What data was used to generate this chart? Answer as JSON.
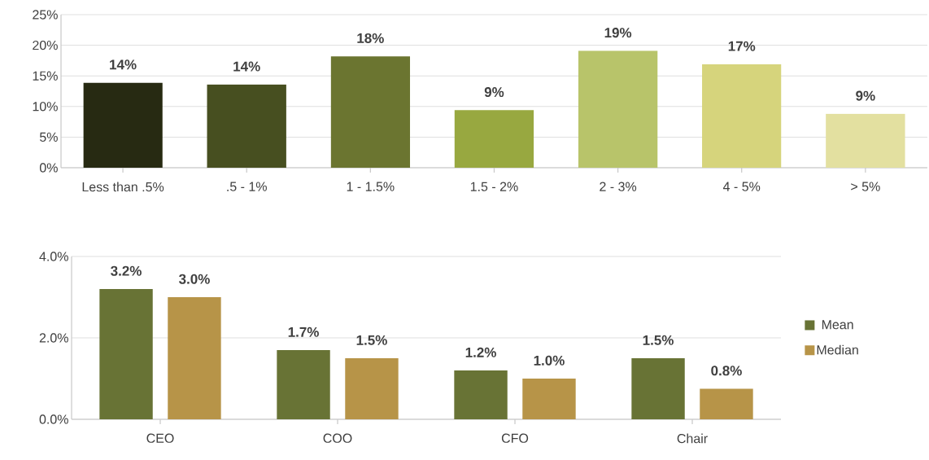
{
  "chart_data": [
    {
      "type": "bar",
      "categories": [
        "Less than .5%",
        ".5 - 1%",
        "1 - 1.5%",
        "1.5 - 2%",
        "2 - 3%",
        "4 - 5%",
        "> 5%"
      ],
      "values": [
        13.9,
        13.6,
        18.2,
        9.4,
        19.1,
        16.9,
        8.8
      ],
      "value_labels": [
        "14%",
        "14%",
        "18%",
        "9%",
        "19%",
        "17%",
        "9%"
      ],
      "colors": [
        "#272a12",
        "#474f20",
        "#6b7530",
        "#98a840",
        "#b8c46a",
        "#d6d47c",
        "#e3e0a0"
      ],
      "ylim": [
        0,
        25
      ],
      "yticks": [
        {
          "value": 0,
          "label": "0%"
        },
        {
          "value": 5,
          "label": "5%"
        },
        {
          "value": 10,
          "label": "10%"
        },
        {
          "value": 15,
          "label": "15%"
        },
        {
          "value": 20,
          "label": "20%"
        },
        {
          "value": 25,
          "label": "25%"
        }
      ],
      "grid": "y",
      "legend": false
    },
    {
      "type": "bar",
      "categories": [
        "CEO",
        "COO",
        "CFO",
        "Chair"
      ],
      "series": [
        {
          "name": "Mean",
          "color": "#687335",
          "values": [
            3.2,
            1.7,
            1.2,
            1.5
          ],
          "value_labels": [
            "3.2%",
            "1.7%",
            "1.2%",
            "1.5%"
          ]
        },
        {
          "name": "Median",
          "color": "#b79448",
          "values": [
            3.0,
            1.5,
            1.0,
            0.75
          ],
          "value_labels": [
            "3.0%",
            "1.5%",
            "1.0%",
            "0.8%"
          ]
        }
      ],
      "ylim": [
        0,
        4
      ],
      "yticks": [
        {
          "value": 0,
          "label": "0.0%"
        },
        {
          "value": 2,
          "label": "2.0%"
        },
        {
          "value": 4,
          "label": "4.0%"
        }
      ],
      "grid": "y",
      "legend": "right"
    }
  ]
}
